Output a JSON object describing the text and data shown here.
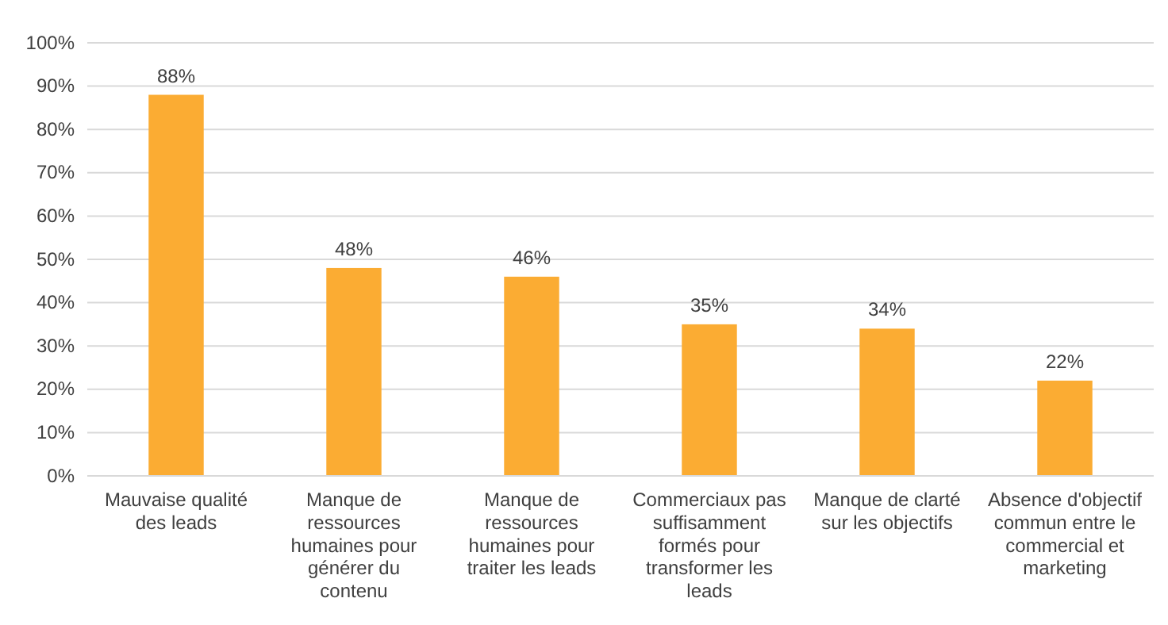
{
  "chart_data": {
    "type": "bar",
    "categories": [
      "Mauvaise qualité des leads",
      "Manque de ressources humaines pour générer du contenu",
      "Manque de ressources humaines pour traiter les leads",
      "Commerciaux pas suffisamment formés pour transformer les leads",
      "Manque de clarté sur les objectifs",
      "Absence d'objectif commun entre le commercial et marketing"
    ],
    "values": [
      88,
      48,
      46,
      35,
      34,
      22
    ],
    "value_labels": [
      "88%",
      "48%",
      "46%",
      "35%",
      "34%",
      "22%"
    ],
    "color": "#fbac33",
    "ylim": [
      0,
      100
    ],
    "yticks": [
      {
        "value": 0,
        "label": "0%"
      },
      {
        "value": 10,
        "label": "10%"
      },
      {
        "value": 20,
        "label": "20%"
      },
      {
        "value": 30,
        "label": "30%"
      },
      {
        "value": 40,
        "label": "40%"
      },
      {
        "value": 50,
        "label": "50%"
      },
      {
        "value": 60,
        "label": "60%"
      },
      {
        "value": 70,
        "label": "70%"
      },
      {
        "value": 80,
        "label": "80%"
      },
      {
        "value": 90,
        "label": "90%"
      },
      {
        "value": 100,
        "label": "100%"
      }
    ],
    "grid": "y"
  }
}
